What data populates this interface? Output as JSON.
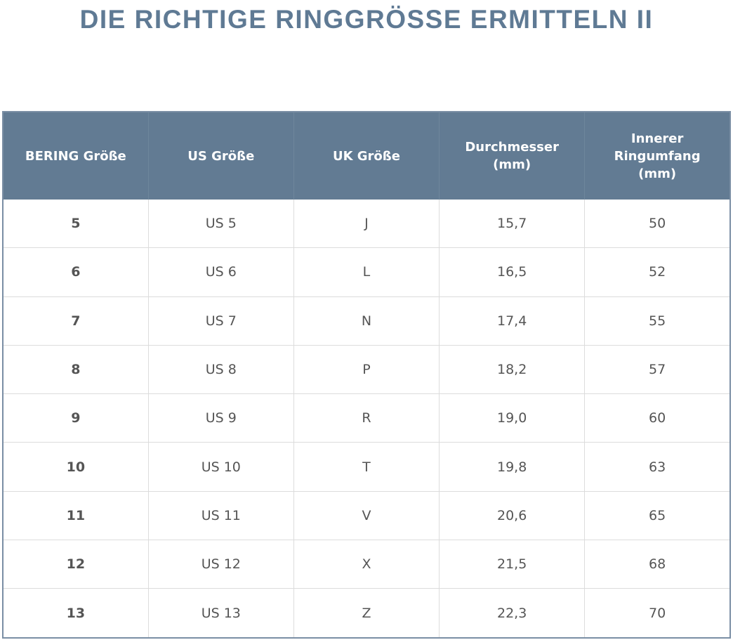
{
  "header": {
    "title": "DIE RICHTIGE RINGGRÖSSE ERMITTELN II"
  },
  "table": {
    "columns": [
      [
        "BERING Größe"
      ],
      [
        "US Größe"
      ],
      [
        "UK Größe"
      ],
      [
        "Durchmesser",
        "(mm)"
      ],
      [
        "Innerer",
        "Ringumfang",
        "(mm)"
      ]
    ],
    "rows": [
      [
        "5",
        "US 5",
        "J",
        "15,7",
        "50"
      ],
      [
        "6",
        "US 6",
        "L",
        "16,5",
        "52"
      ],
      [
        "7",
        "US 7",
        "N",
        "17,4",
        "55"
      ],
      [
        "8",
        "US 8",
        "P",
        "18,2",
        "57"
      ],
      [
        "9",
        "US 9",
        "R",
        "19,0",
        "60"
      ],
      [
        "10",
        "US 10",
        "T",
        "19,8",
        "63"
      ],
      [
        "11",
        "US 11",
        "V",
        "20,6",
        "65"
      ],
      [
        "12",
        "US 12",
        "X",
        "21,5",
        "68"
      ],
      [
        "13",
        "US 13",
        "Z",
        "22,3",
        "70"
      ]
    ]
  }
}
